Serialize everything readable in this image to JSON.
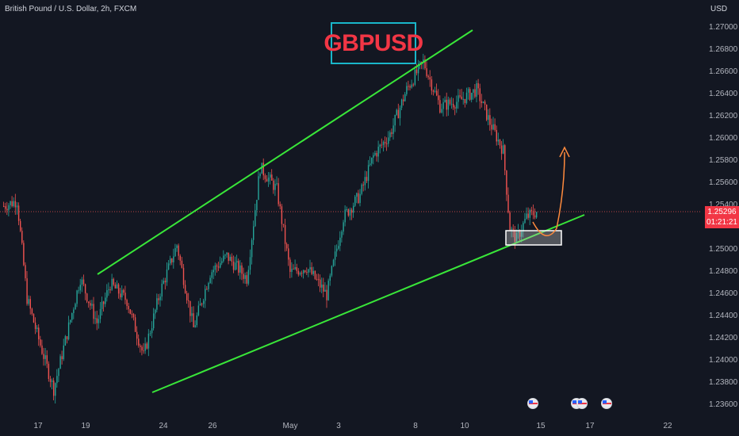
{
  "header": {
    "title": "British Pound / U.S. Dollar, 2h, FXCM",
    "currency": "USD"
  },
  "annotation": {
    "symbol": "GBPUSD"
  },
  "price_axis": {
    "ticks": [
      "1.27000",
      "1.26800",
      "1.26600",
      "1.26400",
      "1.26200",
      "1.26000",
      "1.25800",
      "1.25600",
      "1.25400",
      "1.25000",
      "1.24800",
      "1.24600",
      "1.24400",
      "1.24200",
      "1.24000",
      "1.23800",
      "1.23600"
    ]
  },
  "time_axis": {
    "ticks": [
      "17",
      "19",
      "24",
      "26",
      "May",
      "3",
      "8",
      "10",
      "15",
      "17",
      "22"
    ]
  },
  "current_price": {
    "value": "1.25296",
    "countdown": "01:21:21"
  },
  "colors": {
    "bg": "#131722",
    "up": "#26a69a",
    "down": "#ef5350",
    "channel": "#39e639",
    "projection": "#ff8a3d",
    "accent": "#19b6c9",
    "symbol": "#f23645"
  },
  "icons": {
    "event_flag": "us-flag-icon",
    "event_flag_group": "gb-us-flag-icon"
  },
  "chart_data": {
    "type": "candlestick",
    "ylim": [
      1.2355,
      1.2712
    ],
    "current_price": 1.25296,
    "anchors": [
      [
        0,
        1.2535
      ],
      [
        8,
        1.254
      ],
      [
        14,
        1.2452
      ],
      [
        20,
        1.242
      ],
      [
        30,
        1.237
      ],
      [
        38,
        1.242
      ],
      [
        46,
        1.247
      ],
      [
        56,
        1.243
      ],
      [
        64,
        1.2465
      ],
      [
        74,
        1.245
      ],
      [
        84,
        1.24
      ],
      [
        94,
        1.2458
      ],
      [
        104,
        1.25
      ],
      [
        114,
        1.2425
      ],
      [
        124,
        1.2475
      ],
      [
        134,
        1.249
      ],
      [
        146,
        1.247
      ],
      [
        154,
        1.257
      ],
      [
        164,
        1.255
      ],
      [
        172,
        1.2475
      ],
      [
        182,
        1.248
      ],
      [
        194,
        1.2455
      ],
      [
        204,
        1.2525
      ],
      [
        214,
        1.2545
      ],
      [
        222,
        1.258
      ],
      [
        232,
        1.26
      ],
      [
        242,
        1.264
      ],
      [
        252,
        1.2665
      ],
      [
        262,
        1.2625
      ],
      [
        274,
        1.263
      ],
      [
        284,
        1.264
      ],
      [
        292,
        1.261
      ],
      [
        300,
        1.2585
      ],
      [
        304,
        1.2515
      ],
      [
        308,
        1.2505
      ],
      [
        314,
        1.2525
      ],
      [
        320,
        1.253
      ]
    ]
  }
}
